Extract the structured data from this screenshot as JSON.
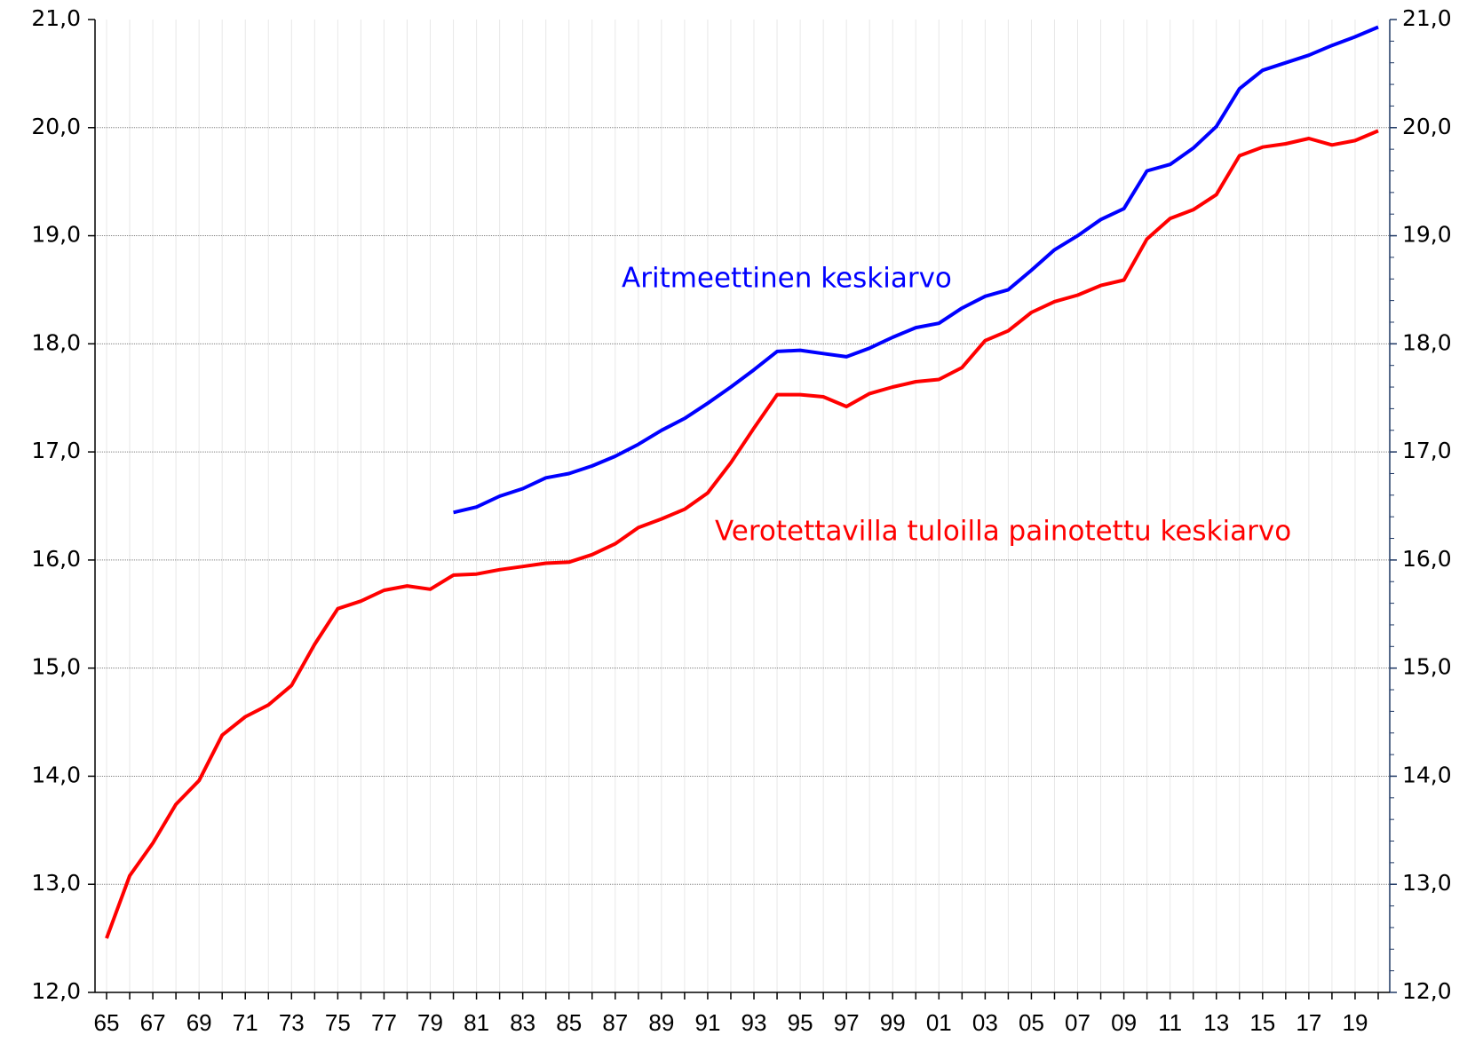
{
  "chart_data": {
    "type": "line",
    "categories": [
      "65",
      null,
      "67",
      null,
      "69",
      null,
      "71",
      null,
      "73",
      null,
      "75",
      null,
      "77",
      null,
      "79",
      null,
      "81",
      null,
      "83",
      null,
      "85",
      null,
      "87",
      null,
      "89",
      null,
      "91",
      null,
      "93",
      null,
      "95",
      null,
      "97",
      null,
      "99",
      null,
      "01",
      null,
      "03",
      null,
      "05",
      null,
      "07",
      null,
      "09",
      null,
      "11",
      null,
      "13",
      null,
      "15",
      null,
      "17",
      null,
      "19",
      null
    ],
    "series": [
      {
        "name": "Aritmeettinen keskiarvo",
        "color": "#0000ff",
        "values": [
          null,
          null,
          null,
          null,
          null,
          null,
          null,
          null,
          null,
          null,
          null,
          null,
          null,
          null,
          null,
          16.44,
          16.49,
          16.59,
          16.66,
          16.76,
          16.8,
          16.87,
          16.96,
          17.07,
          17.2,
          17.31,
          17.45,
          17.6,
          17.76,
          17.93,
          17.94,
          17.91,
          17.88,
          17.96,
          18.06,
          18.15,
          18.19,
          18.33,
          18.44,
          18.5,
          18.68,
          18.87,
          19.0,
          19.15,
          19.25,
          19.6,
          19.66,
          19.81,
          20.01,
          20.36,
          20.53,
          20.6,
          20.67,
          20.76,
          20.84,
          20.93
        ]
      },
      {
        "name": "Verotettavilla tuloilla painotettu keskiarvo",
        "color": "#ff0000",
        "values": [
          12.5,
          13.08,
          13.38,
          13.74,
          13.96,
          14.38,
          14.55,
          14.66,
          14.84,
          15.22,
          15.55,
          15.62,
          15.72,
          15.76,
          15.73,
          15.86,
          15.87,
          15.91,
          15.94,
          15.97,
          15.98,
          16.05,
          16.15,
          16.3,
          16.38,
          16.47,
          16.62,
          16.9,
          17.22,
          17.53,
          17.53,
          17.51,
          17.42,
          17.54,
          17.6,
          17.65,
          17.67,
          17.78,
          18.03,
          18.12,
          18.29,
          18.39,
          18.45,
          18.54,
          18.59,
          18.97,
          19.16,
          19.24,
          19.38,
          19.74,
          19.82,
          19.85,
          19.9,
          19.84,
          19.88,
          19.97
        ]
      }
    ],
    "ylim": [
      12,
      21
    ],
    "yticks": [
      {
        "value": 12,
        "label": "12,0"
      },
      {
        "value": 13,
        "label": "13,0"
      },
      {
        "value": 14,
        "label": "14,0"
      },
      {
        "value": 15,
        "label": "15,0"
      },
      {
        "value": 16,
        "label": "16,0"
      },
      {
        "value": 17,
        "label": "17,0"
      },
      {
        "value": 18,
        "label": "18,0"
      },
      {
        "value": 19,
        "label": "19,0"
      },
      {
        "value": 20,
        "label": "20,0"
      },
      {
        "value": 21,
        "label": "21,0"
      }
    ],
    "y2lim": [
      12,
      21
    ],
    "y2ticks": [
      {
        "value": 12,
        "label": "12,0"
      },
      {
        "value": 13,
        "label": "13,0"
      },
      {
        "value": 14,
        "label": "14,0"
      },
      {
        "value": 15,
        "label": "15,0"
      },
      {
        "value": 16,
        "label": "16,0"
      },
      {
        "value": 17,
        "label": "17,0"
      },
      {
        "value": 18,
        "label": "18,0"
      },
      {
        "value": 19,
        "label": "19,0"
      },
      {
        "value": 20,
        "label": "20,0"
      },
      {
        "value": 21,
        "label": "21,0"
      }
    ],
    "grid": true
  }
}
